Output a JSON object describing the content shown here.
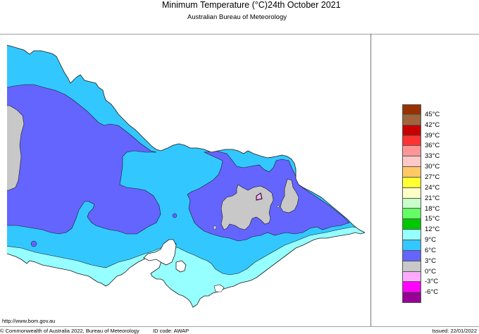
{
  "header": {
    "title": "Minimum Temperature (°C)",
    "date": "24th October 2021",
    "subtitle": "Australian Bureau of Meteorology"
  },
  "footer": {
    "url": "http://www.bom.gov.au",
    "copyright": "© Commonwealth of Australia 2022, Bureau of Meteorology",
    "id_code": "ID code: AWAP",
    "issued": "Issued: 22/01/2022"
  },
  "map": {
    "region": "Victoria",
    "variable": "Minimum Temperature",
    "unit": "°C",
    "colors": {
      "below_0": "#ffaaff",
      "0_3": "#c8c8c8",
      "3_6": "#6464ff",
      "6_9": "#32c8ff",
      "9_12": "#96ffff",
      "outline": "#1a1a1a",
      "background": "#ffffff"
    }
  },
  "legend": {
    "items": [
      {
        "label": "45°C",
        "color": "#963200"
      },
      {
        "label": "42°C",
        "color": "#a0643c"
      },
      {
        "label": "39°C",
        "color": "#c80000"
      },
      {
        "label": "36°C",
        "color": "#ff3232"
      },
      {
        "label": "33°C",
        "color": "#ff9696"
      },
      {
        "label": "30°C",
        "color": "#ffc8c8"
      },
      {
        "label": "27°C",
        "color": "#ffc864"
      },
      {
        "label": "24°C",
        "color": "#ffff32"
      },
      {
        "label": "21°C",
        "color": "#ffffc8"
      },
      {
        "label": "18°C",
        "color": "#c8ffc8"
      },
      {
        "label": "15°C",
        "color": "#64ff64"
      },
      {
        "label": "12°C",
        "color": "#00c800"
      },
      {
        "label": "9°C",
        "color": "#96ffff"
      },
      {
        "label": "6°C",
        "color": "#32c8ff"
      },
      {
        "label": "3°C",
        "color": "#6464ff"
      },
      {
        "label": "0°C",
        "color": "#c8c8c8"
      },
      {
        "label": "-3°C",
        "color": "#ffaaff"
      },
      {
        "label": "-6°C",
        "color": "#ff00ff"
      },
      {
        "label": "",
        "color": "#960096"
      }
    ]
  }
}
